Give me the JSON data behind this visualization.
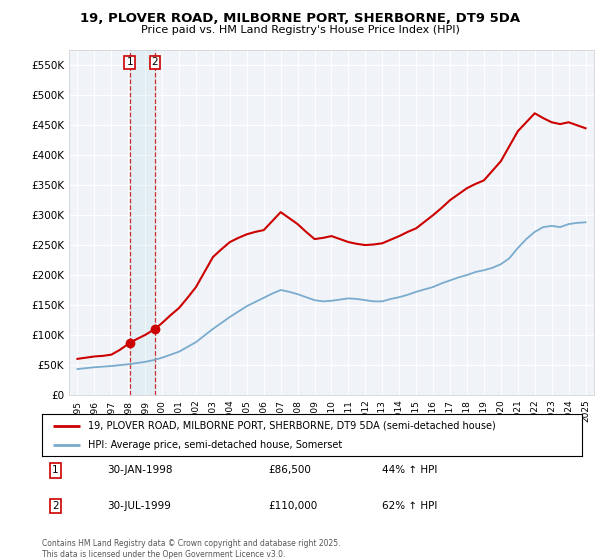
{
  "title": "19, PLOVER ROAD, MILBORNE PORT, SHERBORNE, DT9 5DA",
  "subtitle": "Price paid vs. HM Land Registry's House Price Index (HPI)",
  "legend_line1": "19, PLOVER ROAD, MILBORNE PORT, SHERBORNE, DT9 5DA (semi-detached house)",
  "legend_line2": "HPI: Average price, semi-detached house, Somerset",
  "transaction1_label": "1",
  "transaction1_date": "30-JAN-1998",
  "transaction1_price": "£86,500",
  "transaction1_hpi": "44% ↑ HPI",
  "transaction1_year": 1998.08,
  "transaction1_value": 86500,
  "transaction2_label": "2",
  "transaction2_date": "30-JUL-1999",
  "transaction2_price": "£110,000",
  "transaction2_hpi": "62% ↑ HPI",
  "transaction2_year": 1999.58,
  "transaction2_value": 110000,
  "copyright": "Contains HM Land Registry data © Crown copyright and database right 2025.\nThis data is licensed under the Open Government Licence v3.0.",
  "red_color": "#cc0000",
  "blue_color": "#7aabce",
  "ylim": [
    0,
    575000
  ],
  "yticks": [
    0,
    50000,
    100000,
    150000,
    200000,
    250000,
    300000,
    350000,
    400000,
    450000,
    500000,
    550000
  ],
  "xlim_left": 1994.5,
  "xlim_right": 2025.5,
  "hpi_years": [
    1995.0,
    1995.5,
    1996.0,
    1996.5,
    1997.0,
    1997.5,
    1998.0,
    1998.5,
    1999.0,
    1999.5,
    2000.0,
    2000.5,
    2001.0,
    2001.5,
    2002.0,
    2002.5,
    2003.0,
    2003.5,
    2004.0,
    2004.5,
    2005.0,
    2005.5,
    2006.0,
    2006.5,
    2007.0,
    2007.5,
    2008.0,
    2008.5,
    2009.0,
    2009.5,
    2010.0,
    2010.5,
    2011.0,
    2011.5,
    2012.0,
    2012.5,
    2013.0,
    2013.5,
    2014.0,
    2014.5,
    2015.0,
    2015.5,
    2016.0,
    2016.5,
    2017.0,
    2017.5,
    2018.0,
    2018.5,
    2019.0,
    2019.5,
    2020.0,
    2020.5,
    2021.0,
    2021.5,
    2022.0,
    2022.5,
    2023.0,
    2023.5,
    2024.0,
    2024.5,
    2025.0
  ],
  "hpi_values": [
    43000,
    44500,
    46000,
    47000,
    48000,
    49500,
    51000,
    53000,
    55000,
    58000,
    62000,
    67000,
    72000,
    80000,
    88000,
    99000,
    110000,
    120000,
    130000,
    139000,
    148000,
    155000,
    162000,
    169000,
    175000,
    172000,
    168000,
    163000,
    158000,
    156000,
    157000,
    159000,
    161000,
    160000,
    158000,
    156000,
    156000,
    160000,
    163000,
    167000,
    172000,
    176000,
    180000,
    186000,
    191000,
    196000,
    200000,
    205000,
    208000,
    212000,
    218000,
    228000,
    245000,
    260000,
    272000,
    280000,
    282000,
    280000,
    285000,
    287000,
    288000
  ],
  "prop_years": [
    1995.0,
    1995.5,
    1996.0,
    1996.5,
    1997.0,
    1997.5,
    1998.08,
    1998.5,
    1999.0,
    1999.58,
    2000.0,
    2000.5,
    2001.0,
    2001.5,
    2002.0,
    2002.5,
    2003.0,
    2003.5,
    2004.0,
    2004.5,
    2005.0,
    2005.5,
    2006.0,
    2006.5,
    2007.0,
    2007.5,
    2008.0,
    2008.5,
    2009.0,
    2009.5,
    2010.0,
    2010.5,
    2011.0,
    2011.5,
    2012.0,
    2012.5,
    2013.0,
    2013.5,
    2014.0,
    2014.5,
    2015.0,
    2015.5,
    2016.0,
    2016.5,
    2017.0,
    2017.5,
    2018.0,
    2018.5,
    2019.0,
    2019.5,
    2020.0,
    2020.5,
    2021.0,
    2021.5,
    2022.0,
    2022.5,
    2023.0,
    2023.5,
    2024.0,
    2024.5,
    2025.0
  ],
  "prop_values": [
    60000,
    62000,
    64000,
    65000,
    67000,
    75000,
    86500,
    93000,
    100000,
    110000,
    120000,
    133000,
    145000,
    162000,
    180000,
    205000,
    230000,
    243000,
    255000,
    262000,
    268000,
    272000,
    275000,
    290000,
    305000,
    295000,
    285000,
    272000,
    260000,
    262000,
    265000,
    260000,
    255000,
    252000,
    250000,
    251000,
    253000,
    259000,
    265000,
    272000,
    278000,
    289000,
    300000,
    312000,
    325000,
    335000,
    345000,
    352000,
    358000,
    374000,
    390000,
    415000,
    440000,
    455000,
    470000,
    462000,
    455000,
    452000,
    455000,
    450000,
    445000
  ]
}
